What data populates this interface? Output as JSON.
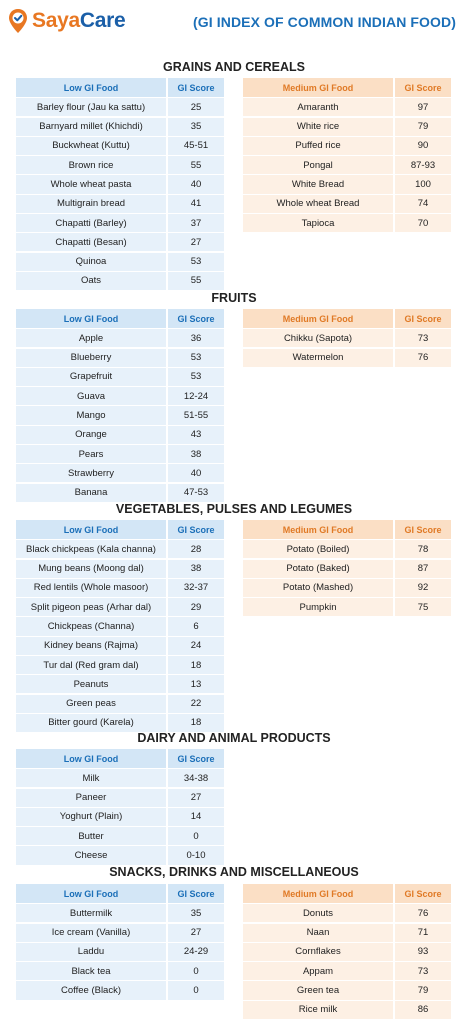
{
  "brand": {
    "name_part1": "Saya",
    "name_part2": "Care",
    "color_orange": "#e87722",
    "color_blue": "#1b5fa8"
  },
  "title": "(GI INDEX OF COMMON INDIAN FOOD)",
  "sections": [
    {
      "title": "GRAINS AND CEREALS",
      "low": {
        "headers": [
          "Low GI Food",
          "GI Score"
        ],
        "rows": [
          [
            "Barley flour (Jau ka sattu)",
            "25"
          ],
          [
            "Barnyard millet (Khichdi)",
            "35"
          ],
          [
            "Buckwheat (Kuttu)",
            "45-51"
          ],
          [
            "Brown rice",
            "55"
          ],
          [
            "Whole wheat pasta",
            "40"
          ],
          [
            "Multigrain bread",
            "41"
          ],
          [
            "Chapatti (Barley)",
            "37"
          ],
          [
            "Chapatti (Besan)",
            "27"
          ],
          [
            "Quinoa",
            "53"
          ],
          [
            "Oats",
            "55"
          ]
        ]
      },
      "medium": {
        "headers": [
          "Medium GI Food",
          "GI Score"
        ],
        "rows": [
          [
            "Amaranth",
            "97"
          ],
          [
            "White rice",
            "79"
          ],
          [
            "Puffed rice",
            "90"
          ],
          [
            "Pongal",
            "87-93"
          ],
          [
            "White Bread",
            "100"
          ],
          [
            "Whole wheat Bread",
            "74"
          ],
          [
            "Tapioca",
            "70"
          ]
        ]
      }
    },
    {
      "title": "FRUITS",
      "low": {
        "headers": [
          "Low GI Food",
          "GI Score"
        ],
        "rows": [
          [
            "Apple",
            "36"
          ],
          [
            "Blueberry",
            "53"
          ],
          [
            "Grapefruit",
            "53"
          ],
          [
            "Guava",
            "12-24"
          ],
          [
            "Mango",
            "51-55"
          ],
          [
            "Orange",
            "43"
          ],
          [
            "Pears",
            "38"
          ],
          [
            "Strawberry",
            "40"
          ],
          [
            "Banana",
            "47-53"
          ]
        ]
      },
      "medium": {
        "headers": [
          "Medium GI Food",
          "GI Score"
        ],
        "rows": [
          [
            "Chikku (Sapota)",
            "73"
          ],
          [
            "Watermelon",
            "76"
          ]
        ]
      }
    },
    {
      "title": "VEGETABLES, PULSES AND LEGUMES",
      "low": {
        "headers": [
          "Low GI Food",
          "GI Score"
        ],
        "rows": [
          [
            "Black chickpeas (Kala channa)",
            "28"
          ],
          [
            "Mung beans (Moong dal)",
            "38"
          ],
          [
            "Red lentils (Whole masoor)",
            "32-37"
          ],
          [
            "Split pigeon peas (Arhar dal)",
            "29"
          ],
          [
            "Chickpeas (Channa)",
            "6"
          ],
          [
            "Kidney beans (Rajma)",
            "24"
          ],
          [
            "Tur dal (Red gram dal)",
            "18"
          ],
          [
            "Peanuts",
            "13"
          ],
          [
            "Green peas",
            "22"
          ],
          [
            "Bitter gourd (Karela)",
            "18"
          ]
        ]
      },
      "medium": {
        "headers": [
          "Medium GI Food",
          "GI Score"
        ],
        "rows": [
          [
            "Potato (Boiled)",
            "78"
          ],
          [
            "Potato (Baked)",
            "87"
          ],
          [
            "Potato (Mashed)",
            "92"
          ],
          [
            "Pumpkin",
            "75"
          ]
        ]
      }
    },
    {
      "title": "DAIRY AND ANIMAL PRODUCTS",
      "low": {
        "headers": [
          "Low GI Food",
          "GI Score"
        ],
        "rows": [
          [
            "Milk",
            "34-38"
          ],
          [
            "Paneer",
            "27"
          ],
          [
            "Yoghurt (Plain)",
            "14"
          ],
          [
            "Butter",
            "0"
          ],
          [
            "Cheese",
            "0-10"
          ]
        ]
      },
      "medium": null
    },
    {
      "title": "SNACKS, DRINKS AND MISCELLANEOUS",
      "low": {
        "headers": [
          "Low GI Food",
          "GI Score"
        ],
        "rows": [
          [
            "Buttermilk",
            "35"
          ],
          [
            "Ice cream (Vanilla)",
            "27"
          ],
          [
            "Laddu",
            "24-29"
          ],
          [
            "Black tea",
            "0"
          ],
          [
            "Coffee (Black)",
            "0"
          ]
        ]
      },
      "medium": {
        "headers": [
          "Medium GI Food",
          "GI Score"
        ],
        "rows": [
          [
            "Donuts",
            "76"
          ],
          [
            "Naan",
            "71"
          ],
          [
            "Cornflakes",
            "93"
          ],
          [
            "Appam",
            "73"
          ],
          [
            "Green tea",
            "79"
          ],
          [
            "Rice milk",
            "86"
          ]
        ]
      }
    }
  ]
}
